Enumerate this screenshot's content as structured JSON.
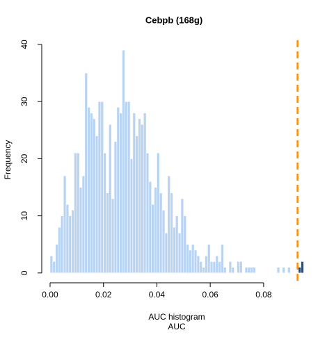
{
  "chart_data": {
    "type": "histogram",
    "title": "Cebpb (168g)",
    "xlabel": [
      "AUC histogram",
      "AUC"
    ],
    "ylabel": "Frequency",
    "bins": [
      0,
      0.001,
      0.002,
      0.003,
      0.004,
      0.005,
      0.006,
      0.007,
      0.008,
      0.009,
      0.01,
      0.011,
      0.012,
      0.013,
      0.014,
      0.015,
      0.016,
      0.017,
      0.018,
      0.019,
      0.02,
      0.021,
      0.022,
      0.023,
      0.024,
      0.025,
      0.026,
      0.027,
      0.028,
      0.029,
      0.03,
      0.031,
      0.032,
      0.033,
      0.034,
      0.035,
      0.036,
      0.037,
      0.038,
      0.039,
      0.04,
      0.041,
      0.042,
      0.043,
      0.044,
      0.045,
      0.046,
      0.047,
      0.048,
      0.049,
      0.05,
      0.051,
      0.052,
      0.053,
      0.054,
      0.055,
      0.056,
      0.057,
      0.058,
      0.059,
      0.06,
      0.061,
      0.062,
      0.063,
      0.064,
      0.065,
      0.066,
      0.067,
      0.068,
      0.069,
      0.07,
      0.071,
      0.072,
      0.073,
      0.074,
      0.075,
      0.076,
      0.077,
      0.078,
      0.079,
      0.08,
      0.081,
      0.082,
      0.083,
      0.084,
      0.085,
      0.086,
      0.087,
      0.088,
      0.089,
      0.09,
      0.091,
      0.092,
      0.093,
      0.094,
      0.095
    ],
    "values": [
      3,
      2,
      5,
      8,
      10,
      17,
      12,
      10,
      11,
      21,
      21,
      15,
      17,
      35,
      29,
      28,
      27,
      24,
      30,
      30,
      21,
      14,
      26,
      13,
      23,
      29,
      28,
      39,
      30,
      30,
      20,
      28,
      24,
      27,
      26,
      28,
      21,
      16,
      12,
      15,
      21,
      14,
      11,
      7,
      17,
      14,
      8,
      10,
      7,
      13,
      10,
      5,
      4,
      5,
      4,
      3,
      2,
      1,
      3,
      5,
      2,
      2,
      3,
      2,
      5,
      1,
      0,
      2,
      1,
      0,
      2,
      2,
      0,
      1,
      1,
      1,
      1,
      0,
      0,
      0,
      0,
      0,
      0,
      0,
      0,
      1,
      0,
      1,
      0,
      1,
      0,
      0,
      0,
      1,
      2
    ],
    "colors": [
      "#b9d3f2",
      "#b9d3f2",
      "#b9d3f2",
      "#b9d3f2",
      "#b9d3f2",
      "#b9d3f2",
      "#b9d3f2",
      "#b9d3f2",
      "#b9d3f2",
      "#b9d3f2",
      "#b9d3f2",
      "#b9d3f2",
      "#b9d3f2",
      "#b9d3f2",
      "#b9d3f2",
      "#b9d3f2",
      "#b9d3f2",
      "#b9d3f2",
      "#b9d3f2",
      "#b9d3f2",
      "#b9d3f2",
      "#b9d3f2",
      "#b9d3f2",
      "#b9d3f2",
      "#b9d3f2",
      "#b9d3f2",
      "#b9d3f2",
      "#b9d3f2",
      "#b9d3f2",
      "#b9d3f2",
      "#b9d3f2",
      "#b9d3f2",
      "#b9d3f2",
      "#b9d3f2",
      "#b9d3f2",
      "#b9d3f2",
      "#b9d3f2",
      "#b9d3f2",
      "#b9d3f2",
      "#b9d3f2",
      "#b9d3f2",
      "#b9d3f2",
      "#b9d3f2",
      "#b9d3f2",
      "#b9d3f2",
      "#b9d3f2",
      "#b9d3f2",
      "#b9d3f2",
      "#b9d3f2",
      "#b9d3f2",
      "#b9d3f2",
      "#b9d3f2",
      "#b9d3f2",
      "#b9d3f2",
      "#b9d3f2",
      "#b9d3f2",
      "#b9d3f2",
      "#b9d3f2",
      "#b9d3f2",
      "#b9d3f2",
      "#b9d3f2",
      "#b9d3f2",
      "#b9d3f2",
      "#b9d3f2",
      "#b9d3f2",
      "#b9d3f2",
      "#b9d3f2",
      "#b9d3f2",
      "#b9d3f2",
      "#b9d3f2",
      "#b9d3f2",
      "#b9d3f2",
      "#b9d3f2",
      "#b9d3f2",
      "#b9d3f2",
      "#b9d3f2",
      "#b9d3f2",
      "#b9d3f2",
      "#b9d3f2",
      "#b9d3f2",
      "#b9d3f2",
      "#b9d3f2",
      "#b9d3f2",
      "#b9d3f2",
      "#b9d3f2",
      "#b9d3f2",
      "#b9d3f2",
      "#b9d3f2",
      "#b9d3f2",
      "#b9d3f2",
      "#b9d3f2",
      "#b9d3f2",
      "#b9d3f2",
      "#1f4e8c",
      "#1f4e8c"
    ],
    "vline": {
      "x": 0.0927,
      "color": "#ff8c00",
      "dashed": true
    },
    "xlim": [
      -0.0038,
      0.0988
    ],
    "xticks": [
      {
        "value": 0,
        "label": "0.00"
      },
      0.02,
      0.04,
      0.06,
      0.08
    ],
    "ylim": [
      -1.6,
      41.6
    ],
    "yticks": [
      0,
      10,
      20,
      30,
      40
    ]
  }
}
